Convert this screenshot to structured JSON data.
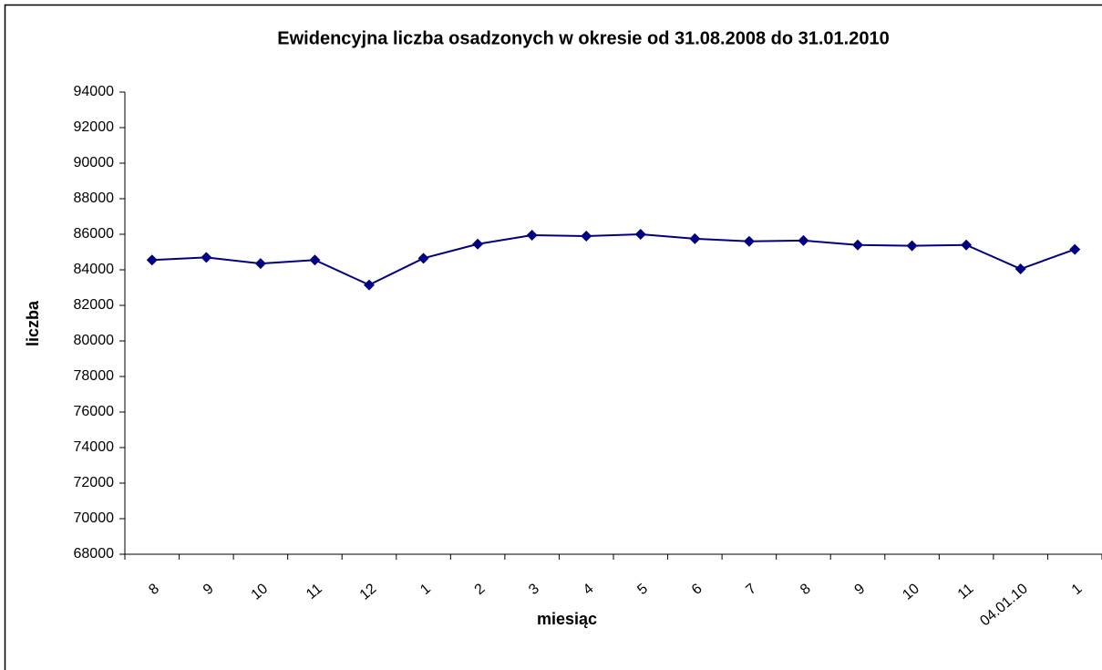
{
  "chart_data": {
    "type": "line",
    "title": "Ewidencyjna liczba osadzonych w okresie od 31.08.2008 do 31.01.2010",
    "x_label": "miesiąc",
    "y_label": "liczba",
    "categories": [
      "8",
      "9",
      "10",
      "11",
      "12",
      "1",
      "2",
      "3",
      "4",
      "5",
      "6",
      "7",
      "8",
      "9",
      "10",
      "11",
      "04.01.10",
      "1"
    ],
    "series": [
      {
        "name": "liczba",
        "color": "#000080",
        "values": [
          84550,
          84700,
          84350,
          84550,
          83150,
          84650,
          85450,
          85950,
          85900,
          86000,
          85750,
          85600,
          85650,
          85400,
          85350,
          85400,
          84050,
          85150
        ]
      }
    ],
    "ylim": [
      68000,
      94000
    ],
    "yticks": [
      68000,
      70000,
      72000,
      74000,
      76000,
      78000,
      80000,
      82000,
      84000,
      86000,
      88000,
      90000,
      92000,
      94000
    ],
    "grid": false,
    "legend": false
  }
}
